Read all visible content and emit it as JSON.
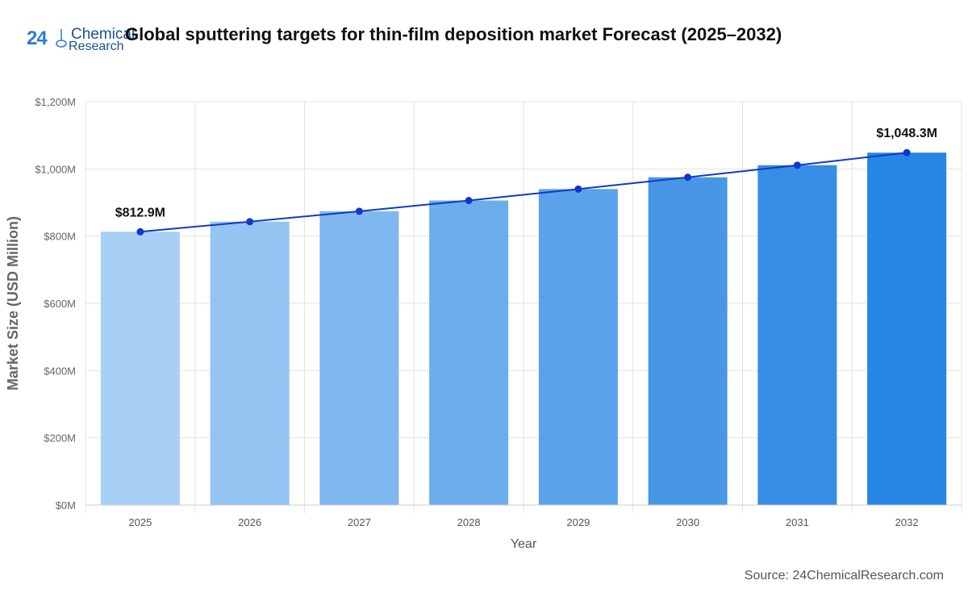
{
  "header": {
    "logo_number": "24",
    "logo_line1": "Chemical",
    "logo_line2": "Research",
    "title": "Global sputtering targets for thin-film deposition market  Forecast (2025–2032)"
  },
  "footer": {
    "source": "Source: 24ChemicalResearch.com"
  },
  "chart_data": {
    "type": "bar",
    "title": "Global sputtering targets for thin-film deposition market  Forecast (2025–2032)",
    "xlabel": "Year",
    "ylabel": "Market Size (USD Million)",
    "categories": [
      "2025",
      "2026",
      "2027",
      "2028",
      "2029",
      "2030",
      "2031",
      "2032"
    ],
    "values": [
      812.9,
      843.0,
      874.0,
      906.0,
      940.0,
      975.0,
      1011.0,
      1048.3
    ],
    "ylim": [
      0,
      1200
    ],
    "yticks": [
      0,
      200,
      400,
      600,
      800,
      1000,
      1200
    ],
    "ytick_labels": [
      "$0M",
      "$200M",
      "$400M",
      "$600M",
      "$800M",
      "$1,000M",
      "$1,200M"
    ],
    "data_labels": [
      {
        "index": 0,
        "text": "$812.9M"
      },
      {
        "index": 7,
        "text": "$1,048.3M"
      }
    ],
    "overlay_line": true,
    "grid": true,
    "colors": {
      "bars": [
        "#a8cff5",
        "#93c4f2",
        "#7fb8ef",
        "#6cadec",
        "#5aa2e9",
        "#4897e6",
        "#378ce4",
        "#2686e3"
      ],
      "line": "#1238c9",
      "point": "#1238c9"
    }
  }
}
